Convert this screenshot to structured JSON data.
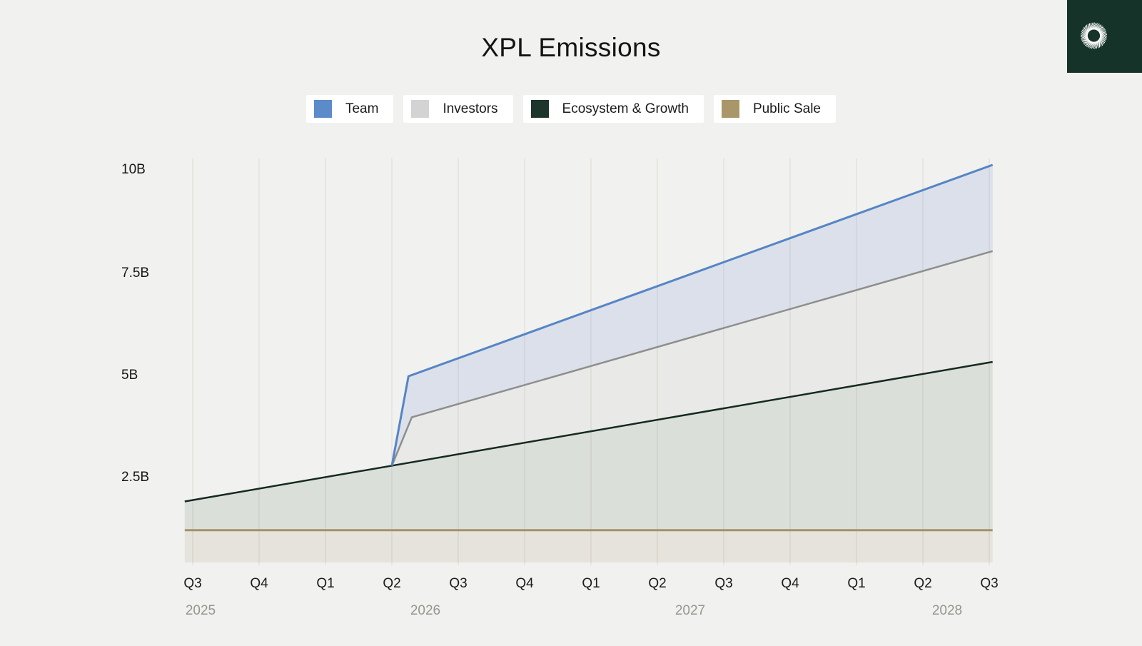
{
  "app": {
    "title": "XPL Emissions"
  },
  "logo": {
    "name": "plasma-spiral-logo",
    "background": "#16332a",
    "foreground": "#ffffff"
  },
  "chart_data": {
    "type": "area",
    "stacked": true,
    "title": "XPL Emissions",
    "unit": "billions of XPL tokens",
    "legend": [
      {
        "label": "Team",
        "color": "#5b8bc9"
      },
      {
        "label": "Investors",
        "color": "#d3d3d3"
      },
      {
        "label": "Ecosystem & Growth",
        "color": "#1d352b"
      },
      {
        "label": "Public Sale",
        "color": "#a99769"
      }
    ],
    "x_axis": {
      "quarter_ticks": [
        "Q3",
        "Q4",
        "Q1",
        "Q2",
        "Q3",
        "Q4",
        "Q1",
        "Q2",
        "Q3",
        "Q4",
        "Q1",
        "Q2",
        "Q3"
      ],
      "year_labels": [
        "2025",
        "2026",
        "2027",
        "2028"
      ],
      "domain_quarter_offsets": [
        -0.12,
        12.05
      ]
    },
    "y_axis": {
      "ticks": [
        "10B",
        "7.5B",
        "5B",
        "2.5B"
      ],
      "tick_values_B": [
        10,
        7.5,
        5,
        2.5
      ],
      "range_B": [
        0,
        10.3
      ],
      "grid": "vertical-only"
    },
    "series": [
      {
        "name": "Team",
        "line_color": "#5585c5",
        "fill_color": "rgba(110,145,215,0.17)",
        "line_width": 3,
        "line_starts_at_quarter": 3.0,
        "cumulative_top_B": [
          [
            -0.12,
            1.8
          ],
          [
            3.0,
            2.67
          ],
          [
            3.25,
            4.85
          ],
          [
            12.05,
            10.0
          ]
        ]
      },
      {
        "name": "Investors",
        "line_color": "#8e8e8e",
        "fill_color": "rgba(130,130,130,0.07)",
        "line_width": 2.5,
        "line_starts_at_quarter": 3.0,
        "cumulative_top_B": [
          [
            -0.12,
            1.8
          ],
          [
            3.0,
            2.67
          ],
          [
            3.3,
            3.85
          ],
          [
            12.05,
            7.9
          ]
        ]
      },
      {
        "name": "Ecosystem & Growth",
        "line_color": "#142a20",
        "fill_color": "rgba(30,70,40,0.10)",
        "line_width": 2.5,
        "line_starts_at_quarter": -0.12,
        "cumulative_top_B": [
          [
            -0.12,
            1.8
          ],
          [
            12.05,
            5.2
          ]
        ]
      },
      {
        "name": "Public Sale",
        "line_color": "#a5916a",
        "fill_color": "rgba(165,145,106,0.14)",
        "line_width": 3,
        "line_starts_at_quarter": -0.12,
        "cumulative_top_B": [
          [
            -0.12,
            1.1
          ],
          [
            12.05,
            1.1
          ]
        ]
      }
    ]
  }
}
